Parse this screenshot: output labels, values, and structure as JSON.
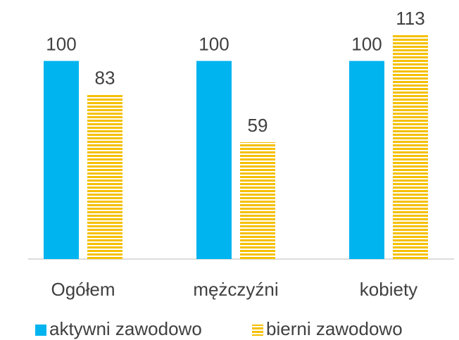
{
  "chart_data": {
    "type": "bar",
    "categories": [
      "Ogółem",
      "mężczyźni",
      "kobiety"
    ],
    "series": [
      {
        "name": "aktywni zawodowo",
        "color": "#00b4ef",
        "pattern": "solid",
        "values": [
          100,
          100,
          100
        ]
      },
      {
        "name": "bierni zawodowo",
        "color": "#f5c000",
        "pattern": "horizontal-stripes",
        "values": [
          83,
          59,
          113
        ]
      }
    ],
    "legend": "bottom"
  }
}
